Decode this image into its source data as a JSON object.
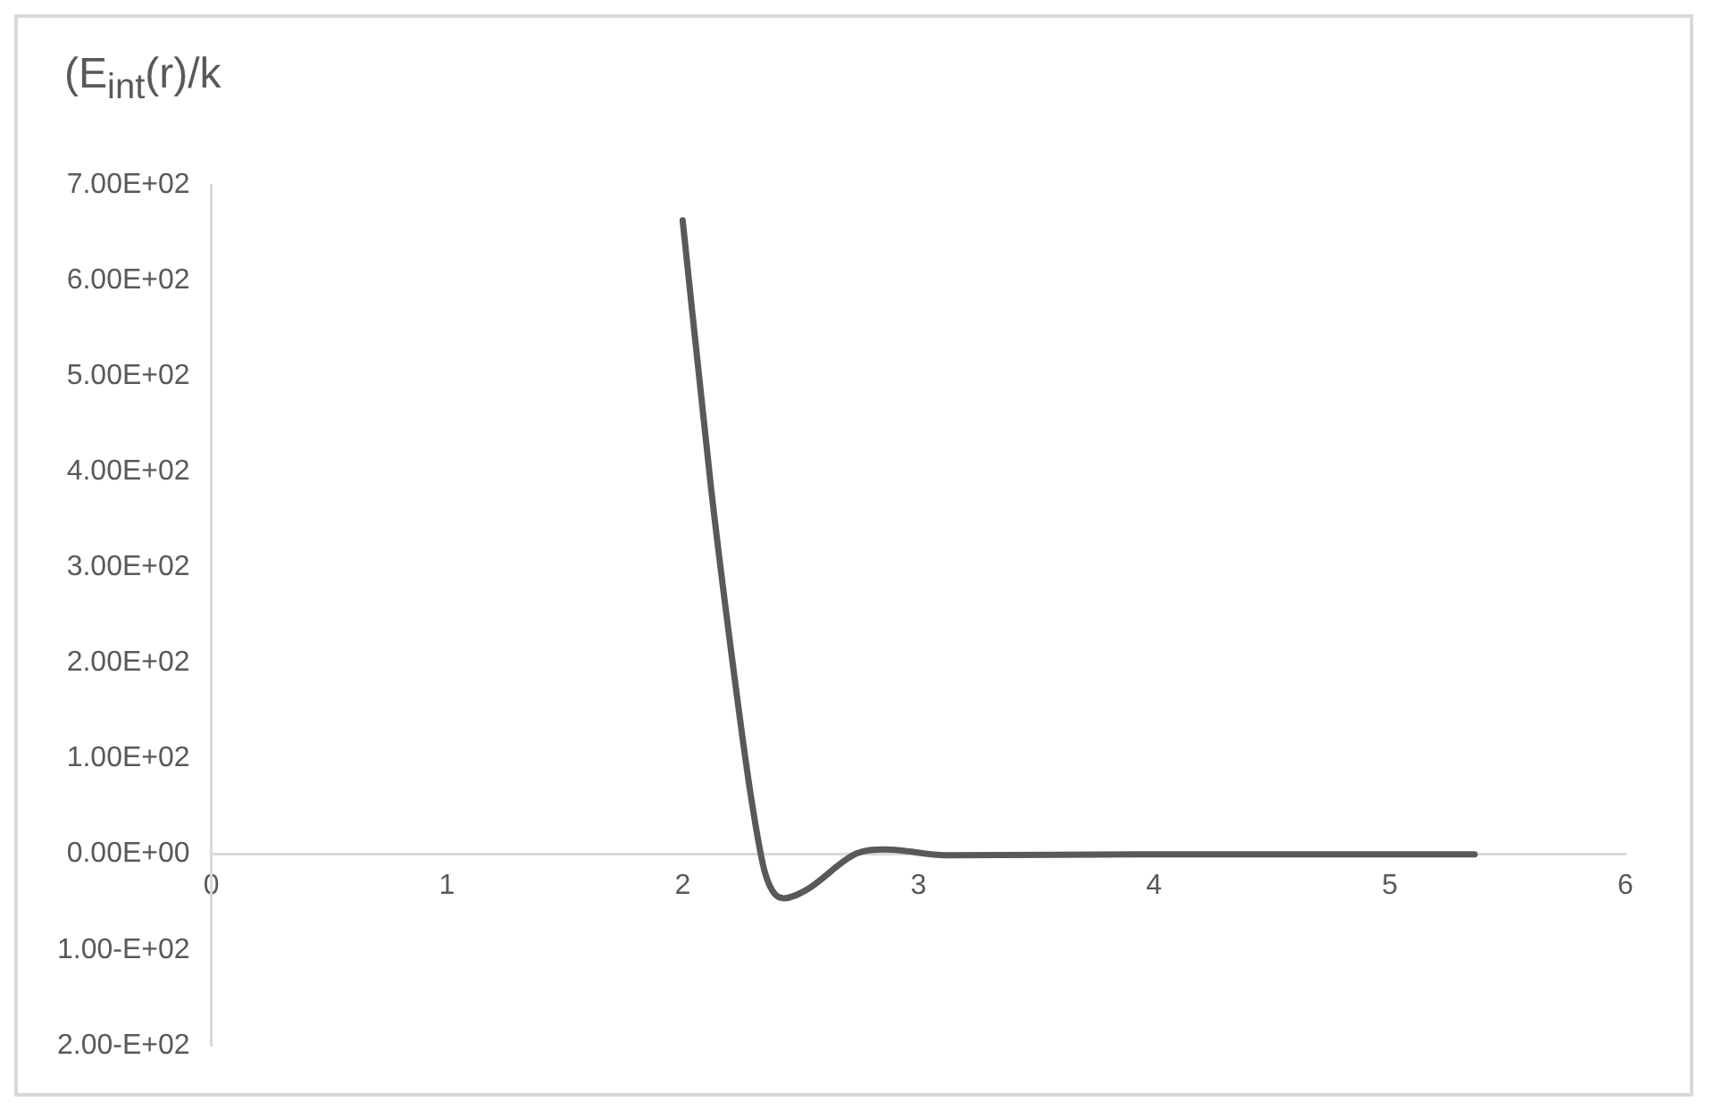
{
  "chart_data": {
    "type": "line",
    "title": "(E$_{int}$(r)/k",
    "x": [
      2.0,
      2.12,
      2.21,
      2.29,
      2.35,
      2.43,
      2.52,
      2.74,
      2.86,
      3.12,
      4.0,
      5.36
    ],
    "series": [
      {
        "color": "#595959",
        "values": [
          663,
          384,
          204,
          60,
          -20,
          -46,
          -38,
          1,
          5,
          -1,
          0,
          0
        ]
      }
    ],
    "xlim": [
      0,
      6
    ],
    "xticks": [
      0,
      1,
      2,
      3,
      4,
      5,
      6
    ],
    "ylim": [
      -200,
      700
    ],
    "yticks": [
      {
        "value": -200,
        "label": "2.00-E+02"
      },
      {
        "value": -100,
        "label": "1.00-E+02"
      },
      {
        "value": 0,
        "label": "0.00E+00"
      },
      {
        "value": 100,
        "label": "1.00E+02"
      },
      {
        "value": 200,
        "label": "2.00E+02"
      },
      {
        "value": 300,
        "label": "3.00E+02"
      },
      {
        "value": 400,
        "label": "4.00E+02"
      },
      {
        "value": 500,
        "label": "5.00E+02"
      },
      {
        "value": 600,
        "label": "6.00E+02"
      },
      {
        "value": 700,
        "label": "7.00E+02"
      }
    ],
    "grid": false,
    "legend": false,
    "marker": "none",
    "line_style": "solid"
  }
}
